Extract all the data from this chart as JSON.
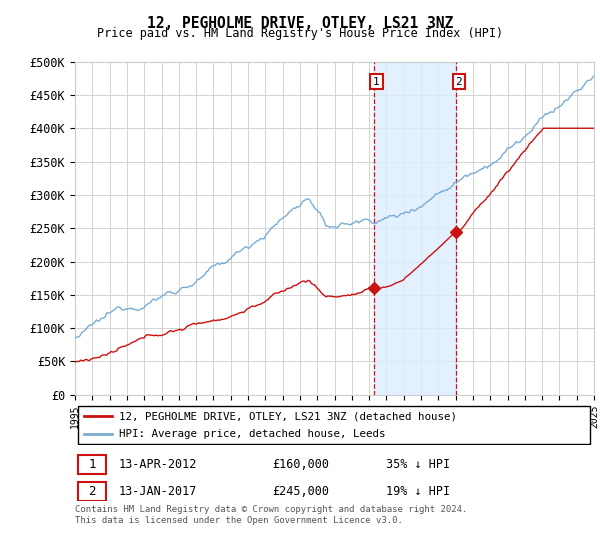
{
  "title": "12, PEGHOLME DRIVE, OTLEY, LS21 3NZ",
  "subtitle": "Price paid vs. HM Land Registry's House Price Index (HPI)",
  "ylim": [
    0,
    500000
  ],
  "yticks": [
    0,
    50000,
    100000,
    150000,
    200000,
    250000,
    300000,
    350000,
    400000,
    450000,
    500000
  ],
  "x_start_year": 1995,
  "x_end_year": 2025,
  "sale1_date": 2012.28,
  "sale1_price": 160000,
  "sale2_date": 2017.04,
  "sale2_price": 245000,
  "hpi_color": "#7aadd4",
  "price_color": "#cc1111",
  "shade_color": "#ddeeff",
  "grid_color": "#cccccc",
  "note_text": "Contains HM Land Registry data © Crown copyright and database right 2024.\nThis data is licensed under the Open Government Licence v3.0.",
  "legend_label1": "12, PEGHOLME DRIVE, OTLEY, LS21 3NZ (detached house)",
  "legend_label2": "HPI: Average price, detached house, Leeds",
  "table_row1": [
    "1",
    "13-APR-2012",
    "£160,000",
    "35% ↓ HPI"
  ],
  "table_row2": [
    "2",
    "13-JAN-2017",
    "£245,000",
    "19% ↓ HPI"
  ]
}
